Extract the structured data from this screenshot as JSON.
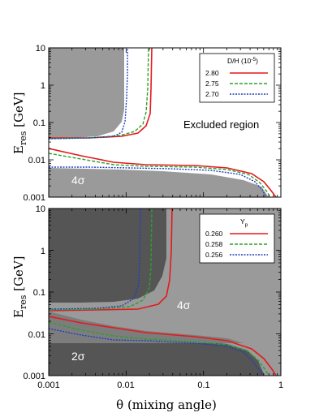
{
  "chart_data": [
    {
      "type": "line",
      "xscale": "log",
      "yscale": "log",
      "xlim": [
        0.001,
        1
      ],
      "ylim": [
        0.001,
        10
      ],
      "ylabel": "E",
      "ylabel_sub": "res",
      "ylabel_unit": " [GeV]",
      "xlabel": "",
      "legend": {
        "title": "D/H (10",
        "title_sup": "-5",
        "title_end": ")",
        "position": "top-right"
      },
      "annotations": [
        {
          "text": "Excluded region",
          "x": 0.2,
          "y": 0.15
        },
        {
          "text": "4σ",
          "x": 0.0018,
          "y": 0.0017
        }
      ],
      "regions": [
        {
          "name": "4σ",
          "color": "#999999",
          "upper_left": [
            [
              0.001,
              10
            ],
            [
              0.0085,
              10
            ],
            [
              0.0085,
              0.3
            ],
            [
              0.007,
              0.12
            ],
            [
              0.004,
              0.06
            ],
            [
              0.001,
              0.04
            ]
          ],
          "lower_band": [
            [
              0.001,
              0.006
            ],
            [
              0.01,
              0.005
            ],
            [
              0.1,
              0.004
            ],
            [
              0.3,
              0.003
            ],
            [
              0.6,
              0.0015
            ],
            [
              0.8,
              0.001
            ],
            [
              0.001,
              0.001
            ]
          ]
        }
      ],
      "series": [
        {
          "name": "2.80",
          "color": "#e41a1c",
          "dash": "solid",
          "upper": [
            [
              0.001,
              0.04
            ],
            [
              0.003,
              0.04
            ],
            [
              0.008,
              0.042
            ],
            [
              0.014,
              0.055
            ],
            [
              0.018,
              0.1
            ],
            [
              0.02,
              0.3
            ],
            [
              0.021,
              1
            ],
            [
              0.021,
              10
            ]
          ],
          "lower": [
            [
              0.001,
              0.025
            ],
            [
              0.003,
              0.013
            ],
            [
              0.008,
              0.008
            ],
            [
              0.02,
              0.007
            ],
            [
              0.08,
              0.0065
            ],
            [
              0.2,
              0.005
            ],
            [
              0.4,
              0.003
            ],
            [
              0.55,
              0.0017
            ],
            [
              0.65,
              0.001
            ]
          ]
        },
        {
          "name": "2.75",
          "color": "#2ca02c",
          "dash": "dashed",
          "upper": [
            [
              0.001,
              0.04
            ],
            [
              0.003,
              0.04
            ],
            [
              0.008,
              0.044
            ],
            [
              0.013,
              0.06
            ],
            [
              0.016,
              0.1
            ],
            [
              0.018,
              0.3
            ],
            [
              0.019,
              1
            ],
            [
              0.019,
              10
            ]
          ],
          "lower": [
            [
              0.001,
              0.02
            ],
            [
              0.003,
              0.011
            ],
            [
              0.008,
              0.0072
            ],
            [
              0.02,
              0.0068
            ],
            [
              0.08,
              0.006
            ],
            [
              0.2,
              0.0048
            ],
            [
              0.4,
              0.0028
            ],
            [
              0.5,
              0.0016
            ],
            [
              0.58,
              0.001
            ]
          ]
        },
        {
          "name": "2.70",
          "color": "#1f3fbf",
          "dash": "dotted",
          "upper": [
            [
              0.001,
              0.045
            ],
            [
              0.003,
              0.045
            ],
            [
              0.006,
              0.05
            ],
            [
              0.008,
              0.07
            ],
            [
              0.0092,
              0.12
            ],
            [
              0.0098,
              0.4
            ],
            [
              0.01,
              1.5
            ],
            [
              0.01,
              10
            ]
          ],
          "lower": [
            [
              0.001,
              0.0065
            ],
            [
              0.004,
              0.0065
            ],
            [
              0.008,
              0.0062
            ],
            [
              0.02,
              0.006
            ],
            [
              0.08,
              0.0055
            ],
            [
              0.2,
              0.0045
            ],
            [
              0.35,
              0.003
            ],
            [
              0.48,
              0.0016
            ],
            [
              0.55,
              0.001
            ]
          ]
        }
      ],
      "xticks": [
        "0.001",
        "0.01",
        "0.1",
        "1"
      ],
      "yticks": [
        "0.001",
        "0.01",
        "0.1",
        "1",
        "10"
      ]
    },
    {
      "type": "line",
      "xscale": "log",
      "yscale": "log",
      "xlim": [
        0.001,
        1
      ],
      "ylim": [
        0.001,
        10
      ],
      "ylabel": "E",
      "ylabel_sub": "res",
      "ylabel_unit": " [GeV]",
      "xlabel": "θ (mixing angle)",
      "legend": {
        "title": "Y",
        "title_sub": "p",
        "position": "top-right"
      },
      "annotations": [
        {
          "text": "4σ",
          "x": 0.055,
          "y": 0.11
        },
        {
          "text": "2σ",
          "x": 0.0018,
          "y": 0.0025
        }
      ],
      "regions": [
        {
          "name": "4σ",
          "color": "#999999"
        },
        {
          "name": "2σ",
          "color": "#555555"
        }
      ],
      "series": [
        {
          "name": "0.260",
          "color": "#e41a1c",
          "dash": "solid",
          "upper": [
            [
              0.001,
              0.035
            ],
            [
              0.004,
              0.035
            ],
            [
              0.01,
              0.036
            ],
            [
              0.02,
              0.045
            ],
            [
              0.03,
              0.07
            ],
            [
              0.034,
              0.2
            ],
            [
              0.035,
              0.6
            ],
            [
              0.036,
              10
            ]
          ],
          "lower": [
            [
              0.001,
              0.017
            ],
            [
              0.003,
              0.013
            ],
            [
              0.01,
              0.01
            ],
            [
              0.03,
              0.0085
            ],
            [
              0.08,
              0.0075
            ],
            [
              0.2,
              0.0055
            ],
            [
              0.4,
              0.003
            ],
            [
              0.55,
              0.0017
            ],
            [
              0.65,
              0.001
            ]
          ]
        },
        {
          "name": "0.258",
          "color": "#2ca02c",
          "dash": "dashed",
          "upper": [
            [
              0.001,
              0.037
            ],
            [
              0.004,
              0.037
            ],
            [
              0.01,
              0.04
            ],
            [
              0.016,
              0.06
            ],
            [
              0.019,
              0.12
            ],
            [
              0.02,
              0.5
            ],
            [
              0.02,
              10
            ]
          ],
          "lower": [
            [
              0.001,
              0.012
            ],
            [
              0.003,
              0.009
            ],
            [
              0.008,
              0.0075
            ],
            [
              0.02,
              0.0066
            ],
            [
              0.08,
              0.006
            ],
            [
              0.2,
              0.0048
            ],
            [
              0.4,
              0.0028
            ],
            [
              0.5,
              0.0016
            ],
            [
              0.57,
              0.001
            ]
          ]
        },
        {
          "name": "0.256",
          "color": "#1f3fbf",
          "dash": "dotted",
          "upper": [
            [
              0.001,
              0.04
            ],
            [
              0.004,
              0.04
            ],
            [
              0.008,
              0.045
            ],
            [
              0.011,
              0.06
            ],
            [
              0.0135,
              0.12
            ],
            [
              0.0145,
              0.5
            ],
            [
              0.015,
              10
            ]
          ],
          "lower": [
            [
              0.001,
              0.0085
            ],
            [
              0.003,
              0.0075
            ],
            [
              0.008,
              0.0065
            ],
            [
              0.02,
              0.006
            ],
            [
              0.08,
              0.0053
            ],
            [
              0.2,
              0.0043
            ],
            [
              0.35,
              0.0028
            ],
            [
              0.47,
              0.0016
            ],
            [
              0.55,
              0.001
            ]
          ]
        }
      ],
      "xticks": [
        "0.001",
        "0.01",
        "0.1",
        "1"
      ],
      "yticks": [
        "0.001",
        "0.01",
        "0.1",
        "1",
        "10"
      ]
    }
  ]
}
